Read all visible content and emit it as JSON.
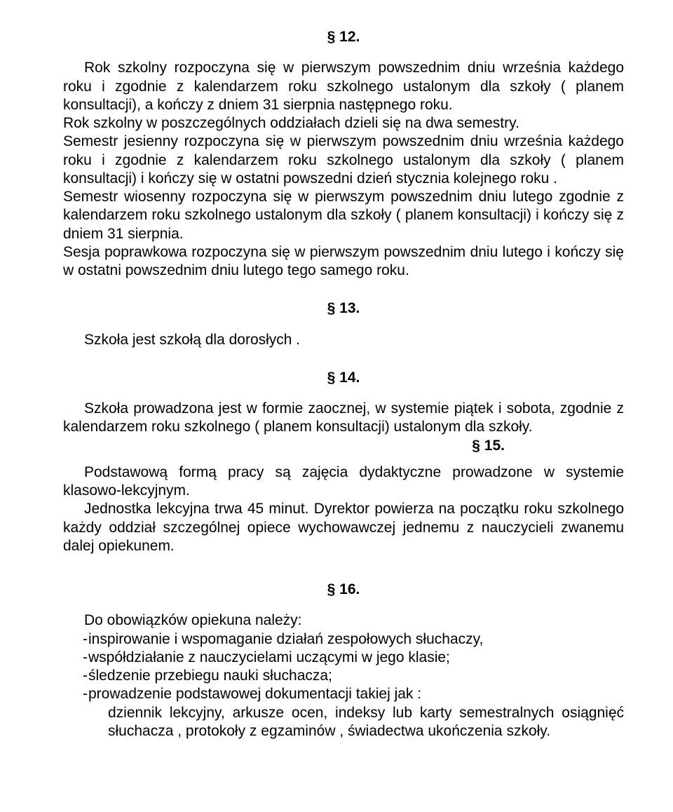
{
  "s12": {
    "heading": "§  12.",
    "p1": "Rok szkolny rozpoczyna się w pierwszym powszednim dniu września każdego roku  i  zgodnie  z  kalendarzem  roku  szkolnego  ustalonym  dla  szkoły  (  planem konsultacji), a kończy z dniem 31 sierpnia następnego roku.",
    "p2": "Rok szkolny w   poszczególnych oddziałach dzieli się na dwa semestry.",
    "p3": "Semestr jesienny rozpoczyna się w pierwszym powszednim dniu września każdego roku  i  zgodnie  z  kalendarzem  roku  szkolnego  ustalonym  dla  szkoły  (  planem konsultacji) i kończy się w ostatni powszedni dzień stycznia kolejnego roku .",
    "p4": "Semestr wiosenny rozpoczyna się w pierwszym powszednim dniu lutego zgodnie z kalendarzem roku szkolnego ustalonym dla szkoły ( planem konsultacji) i kończy się z dniem 31 sierpnia.",
    "p5": "Sesja poprawkowa rozpoczyna się w pierwszym powszednim dniu lutego i kończy się w ostatni powszednim dniu lutego tego samego roku."
  },
  "s13": {
    "heading": "§  13.",
    "p1": "Szkoła jest szkołą dla dorosłych ."
  },
  "s14": {
    "heading": "§  14.",
    "p1": "Szkoła prowadzona jest w formie zaocznej, w systemie piątek i sobota, zgodnie z kalendarzem roku szkolnego ( planem konsultacji) ustalonym dla szkoły."
  },
  "s15": {
    "heading": "§  15.",
    "p1": "Podstawową  formą  pracy  są  zajęcia  dydaktyczne  prowadzone  w  systemie klasowo-lekcyjnym.",
    "p2": "Jednostka lekcyjna trwa 45 minut. Dyrektor powierza na początku roku szkolnego każdy oddział szczególnej opiece wychowawczej jednemu z nauczycieli zwanemu dalej opiekunem."
  },
  "s16": {
    "heading": "§  16.",
    "intro": "Do obowiązków opiekuna należy:",
    "items": [
      "inspirowanie i   wspomaganie działań zespołowych słuchaczy,",
      "współdziałanie z   nauczycielami uczącymi w   jego klasie;",
      "śledzenie przebiegu nauki słuchacza;",
      "prowadzenie podstawowej dokumentacji takiej jak :"
    ],
    "sub": "dziennik  lekcyjny,  arkusze  ocen,  indeksy  lub  karty  semestralnych  osiągnięć słuchacza , protokoły z   egzaminów ,  świadectwa ukończenia szkoły."
  },
  "dash": "-"
}
